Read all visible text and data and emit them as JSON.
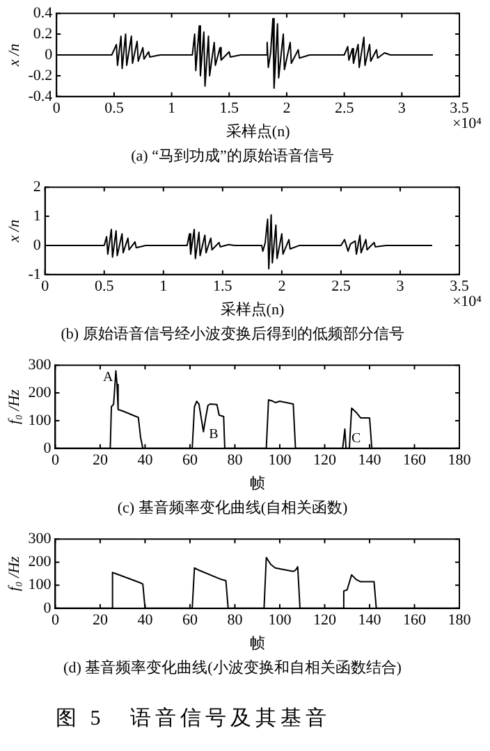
{
  "chart_data": [
    {
      "type": "line",
      "title": "(a) “马到功成”的原始语音信号",
      "xlabel": "采样点(n)",
      "ylabel": "x /n",
      "marker": "none",
      "annotations": [
        "×10⁴"
      ],
      "xlim": [
        0,
        3.5
      ],
      "xticks": [
        0,
        0.5,
        1,
        1.5,
        2,
        2.5,
        3,
        3.5
      ],
      "ylim": [
        -0.4,
        0.4
      ],
      "yticks": [
        -0.4,
        -0.2,
        0,
        0.2,
        0.4
      ],
      "series": [
        {
          "color": "#000000",
          "x": [
            0,
            0.48,
            0.52,
            0.53,
            0.56,
            0.57,
            0.6,
            0.61,
            0.65,
            0.66,
            0.7,
            0.71,
            0.75,
            0.76,
            0.8,
            0.81,
            0.9,
            1.18,
            1.2,
            1.21,
            1.24,
            1.25,
            1.28,
            1.29,
            1.32,
            1.33,
            1.37,
            1.38,
            1.42,
            1.43,
            1.5,
            1.51,
            1.6,
            1.82,
            1.83,
            1.84,
            1.86,
            1.88,
            1.89,
            1.92,
            1.93,
            1.97,
            1.98,
            2.03,
            2.04,
            2.1,
            2.11,
            2.2,
            2.5,
            2.53,
            2.54,
            2.57,
            2.58,
            2.62,
            2.63,
            2.67,
            2.68,
            2.72,
            2.73,
            2.78,
            2.79,
            2.85,
            2.9,
            3.27
          ],
          "values": [
            0,
            0,
            0.1,
            -0.1,
            0.18,
            -0.13,
            0.2,
            -0.1,
            0.18,
            -0.08,
            0.13,
            -0.06,
            0.07,
            -0.04,
            0.03,
            -0.02,
            0,
            0,
            0.2,
            -0.15,
            0.28,
            -0.2,
            0.22,
            -0.3,
            0.18,
            -0.2,
            0.12,
            -0.1,
            0.07,
            -0.05,
            0.03,
            -0.02,
            0,
            0,
            0.12,
            -0.12,
            0.02,
            0.35,
            -0.32,
            0.3,
            -0.22,
            0.2,
            -0.14,
            0.12,
            -0.08,
            0.05,
            -0.03,
            0,
            0,
            0.08,
            -0.05,
            0.06,
            -0.08,
            0.1,
            -0.12,
            0.17,
            -0.1,
            0.1,
            -0.06,
            0.05,
            -0.03,
            0.02,
            0,
            0
          ]
        }
      ]
    },
    {
      "type": "line",
      "title": "(b) 原始语音信号经小波变换后得到的低频部分信号",
      "xlabel": "采样点(n)",
      "ylabel": "x /n",
      "marker": "none",
      "annotations": [
        "×10⁴"
      ],
      "xlim": [
        0,
        3.5
      ],
      "xticks": [
        0,
        0.5,
        1,
        1.5,
        2,
        2.5,
        3,
        3.5
      ],
      "ylim": [
        -1,
        2
      ],
      "yticks": [
        -1,
        0,
        1,
        2
      ],
      "series": [
        {
          "color": "#000000",
          "x": [
            0,
            0.5,
            0.52,
            0.53,
            0.56,
            0.57,
            0.6,
            0.61,
            0.65,
            0.66,
            0.7,
            0.71,
            0.76,
            0.77,
            0.85,
            1.2,
            1.22,
            1.23,
            1.26,
            1.27,
            1.3,
            1.31,
            1.35,
            1.36,
            1.4,
            1.41,
            1.47,
            1.48,
            1.55,
            1.6,
            1.83,
            1.84,
            1.86,
            1.88,
            1.89,
            1.91,
            1.92,
            1.95,
            1.96,
            2.0,
            2.01,
            2.06,
            2.07,
            2.15,
            2.5,
            2.53,
            2.56,
            2.58,
            2.62,
            2.63,
            2.66,
            2.67,
            2.71,
            2.72,
            2.78,
            2.79,
            2.88,
            3.27
          ],
          "values": [
            0,
            0,
            0.3,
            -0.3,
            0.55,
            -0.4,
            0.5,
            -0.35,
            0.4,
            -0.25,
            0.25,
            -0.15,
            0.12,
            -0.08,
            0,
            0,
            0.4,
            -0.3,
            0.55,
            -0.45,
            0.45,
            -0.35,
            0.35,
            -0.25,
            0.25,
            -0.15,
            0.1,
            -0.05,
            0.03,
            0,
            0,
            -0.2,
            0.1,
            0.9,
            -0.8,
            1.05,
            -0.6,
            0.7,
            -0.45,
            0.4,
            -0.3,
            0.2,
            -0.12,
            0,
            0,
            0.2,
            -0.2,
            0.05,
            0.15,
            -0.3,
            0.35,
            -0.25,
            0.2,
            -0.15,
            0.1,
            -0.05,
            0,
            0
          ]
        }
      ]
    },
    {
      "type": "line",
      "title": "(c) 基音频率变化曲线(自相关函数)",
      "xlabel": "帧",
      "ylabel": "f₀ /Hz",
      "marker": "none",
      "annotations": [
        {
          "text": "A",
          "x": 27,
          "y": 280
        },
        {
          "text": "B",
          "x": 66,
          "y": 60
        },
        {
          "text": "C",
          "x": 129.5,
          "y": 0
        }
      ],
      "xlim": [
        0,
        180
      ],
      "xticks": [
        0,
        20,
        40,
        60,
        80,
        100,
        120,
        140,
        160,
        180
      ],
      "ylim": [
        0,
        300
      ],
      "yticks": [
        0,
        100,
        200,
        300
      ],
      "series": [
        {
          "color": "#000000",
          "x": [
            0,
            24.5,
            25,
            26,
            27,
            27.5,
            28,
            30,
            36,
            37,
            38,
            39,
            61,
            62,
            63,
            64,
            65,
            66,
            67,
            68,
            69,
            72,
            73,
            75,
            75.5,
            94,
            95,
            97,
            98,
            100,
            106,
            107,
            128,
            129,
            129.5,
            131,
            132,
            134,
            136,
            140,
            141,
            180
          ],
          "values": [
            0,
            0,
            150,
            160,
            280,
            230,
            140,
            135,
            115,
            112,
            40,
            0,
            0,
            150,
            170,
            160,
            110,
            60,
            110,
            155,
            160,
            158,
            120,
            115,
            0,
            0,
            175,
            170,
            165,
            170,
            160,
            0,
            0,
            70,
            0,
            0,
            145,
            130,
            110,
            110,
            0,
            0
          ]
        }
      ]
    },
    {
      "type": "line",
      "title": "(d) 基音频率变化曲线(小波变换和自相关函数结合)",
      "xlabel": "帧",
      "ylabel": "f₀ /Hz",
      "marker": "none",
      "annotations": [
        "图 5　语音信号及其基音"
      ],
      "xlim": [
        0,
        180
      ],
      "xticks": [
        0,
        20,
        40,
        60,
        80,
        100,
        120,
        140,
        160,
        180
      ],
      "ylim": [
        0,
        300
      ],
      "yticks": [
        0,
        100,
        200,
        300
      ],
      "series": [
        {
          "color": "#000000",
          "x": [
            0,
            25,
            25.5,
            27,
            38,
            39,
            40,
            61,
            62,
            64,
            74,
            76,
            77,
            93,
            94,
            96,
            98,
            106,
            107,
            108,
            109,
            128,
            128.5,
            130,
            132,
            134,
            136,
            142,
            143,
            145,
            180
          ],
          "values": [
            0,
            0,
            155,
            150,
            110,
            105,
            0,
            0,
            175,
            165,
            125,
            120,
            0,
            0,
            220,
            190,
            175,
            160,
            165,
            180,
            0,
            0,
            75,
            80,
            145,
            125,
            115,
            115,
            0,
            0,
            0
          ]
        }
      ]
    }
  ]
}
